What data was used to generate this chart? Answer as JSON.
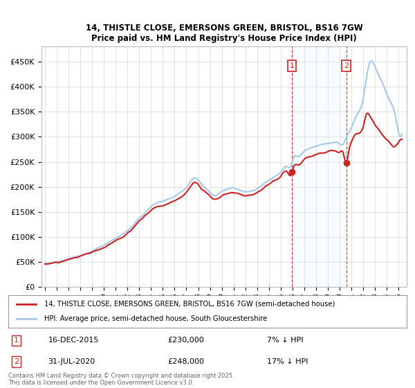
{
  "title_line1": "14, THISTLE CLOSE, EMERSONS GREEN, BRISTOL, BS16 7GW",
  "title_line2": "Price paid vs. HM Land Registry's House Price Index (HPI)",
  "ylim": [
    0,
    480000
  ],
  "yticks": [
    0,
    50000,
    100000,
    150000,
    200000,
    250000,
    300000,
    350000,
    400000,
    450000
  ],
  "ytick_labels": [
    "£0",
    "£50K",
    "£100K",
    "£150K",
    "£200K",
    "£250K",
    "£300K",
    "£350K",
    "£400K",
    "£450K"
  ],
  "sale1_date": 2015.958,
  "sale1_price": 230000,
  "sale1_label": "16-DEC-2015",
  "sale1_pct": "7% ↓ HPI",
  "sale2_date": 2020.581,
  "sale2_price": 248000,
  "sale2_label": "31-JUL-2020",
  "sale2_pct": "17% ↓ HPI",
  "legend_line1": "14, THISTLE CLOSE, EMERSONS GREEN, BRISTOL, BS16 7GW (semi-detached house)",
  "legend_line2": "HPI: Average price, semi-detached house, South Gloucestershire",
  "footnote": "Contains HM Land Registry data © Crown copyright and database right 2025.\nThis data is licensed under the Open Government Licence v3.0.",
  "hpi_color": "#a8c8e8",
  "price_color": "#cc2222",
  "background_color": "#ffffff",
  "grid_color": "#dddddd",
  "shade_color": "#ddeeff",
  "xlim_left": 1994.7,
  "xlim_right": 2025.7
}
